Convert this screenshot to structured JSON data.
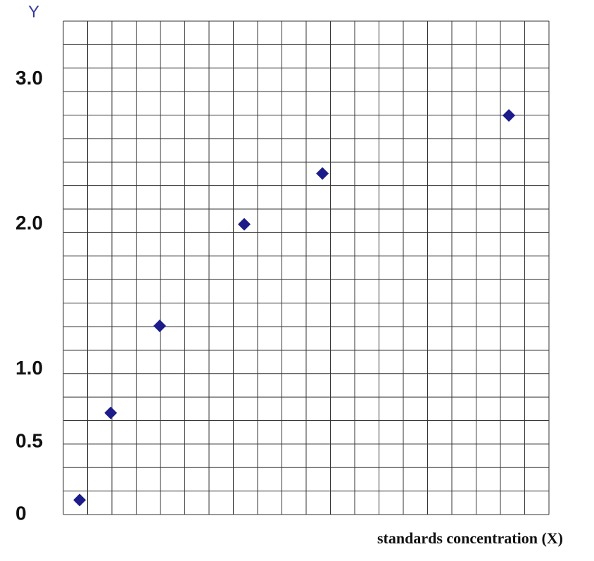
{
  "chart_data": {
    "type": "scatter",
    "y_label": "Y",
    "x_label": "standards concentration (X)",
    "x": [
      0.67,
      1.95,
      3.97,
      7.45,
      10.67,
      18.35
    ],
    "values": [
      0.1,
      0.7,
      1.3,
      2.0,
      2.35,
      2.75
    ],
    "color": "#1c1c8a",
    "xlim": [
      0,
      20
    ],
    "ylim": [
      0,
      3.4
    ],
    "yticks": [
      0,
      0.5,
      {
        "value": 1,
        "label": "1.0"
      },
      {
        "value": 2,
        "label": "2.0"
      },
      {
        "value": 3,
        "label": "3.0"
      }
    ],
    "grid": true
  }
}
